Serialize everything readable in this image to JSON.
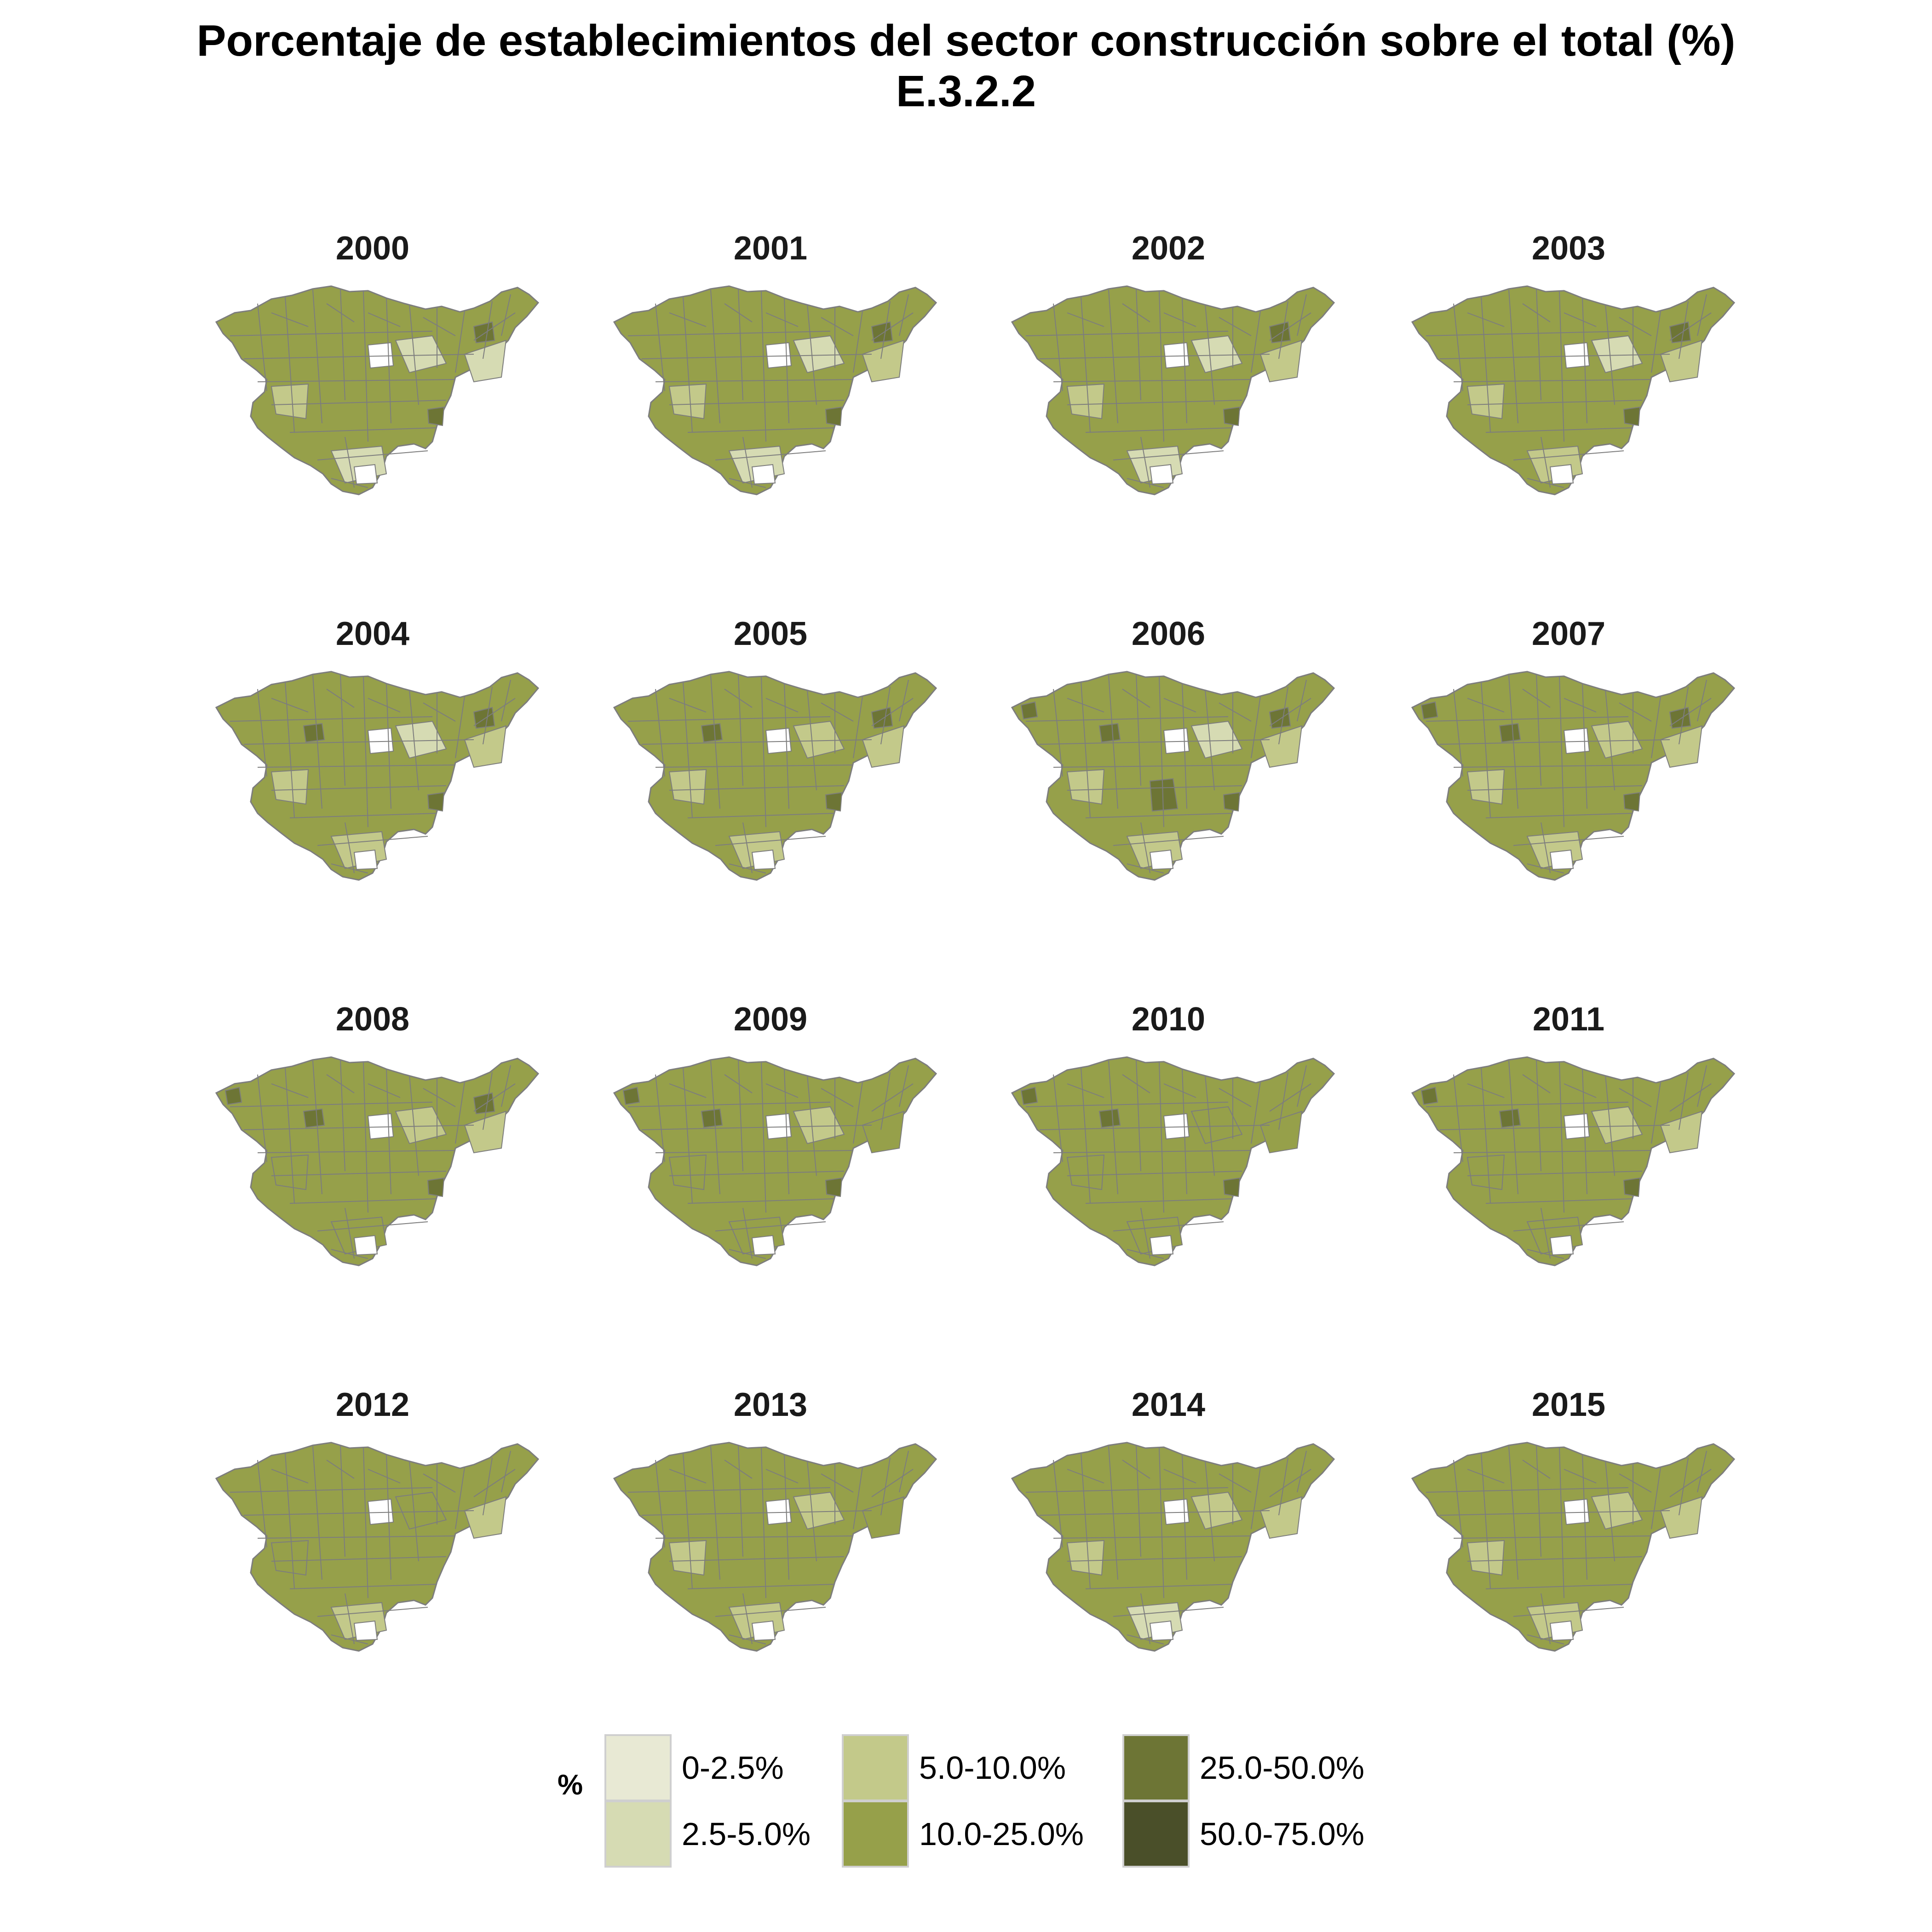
{
  "title": {
    "line1": "Porcentaje de establecimientos del sector construcción sobre el total (%)",
    "line2": "E.3.2.2"
  },
  "panels": [
    "2000",
    "2001",
    "2002",
    "2003",
    "2004",
    "2005",
    "2006",
    "2007",
    "2008",
    "2009",
    "2010",
    "2011",
    "2012",
    "2013",
    "2014",
    "2015"
  ],
  "legend": {
    "title": "%",
    "items": [
      {
        "label": "0-2.5%",
        "color": "#e8e9d4"
      },
      {
        "label": "2.5-5.0%",
        "color": "#d6dbb3"
      },
      {
        "label": "5.0-10.0%",
        "color": "#c3c98a"
      },
      {
        "label": "10.0-25.0%",
        "color": "#96a04a"
      },
      {
        "label": "25.0-50.0%",
        "color": "#6d7535"
      },
      {
        "label": "50.0-75.0%",
        "color": "#4a4f29"
      }
    ]
  },
  "colors": {
    "border": "#7d7d7d",
    "legend_key_border": "#cfcfcf"
  }
}
